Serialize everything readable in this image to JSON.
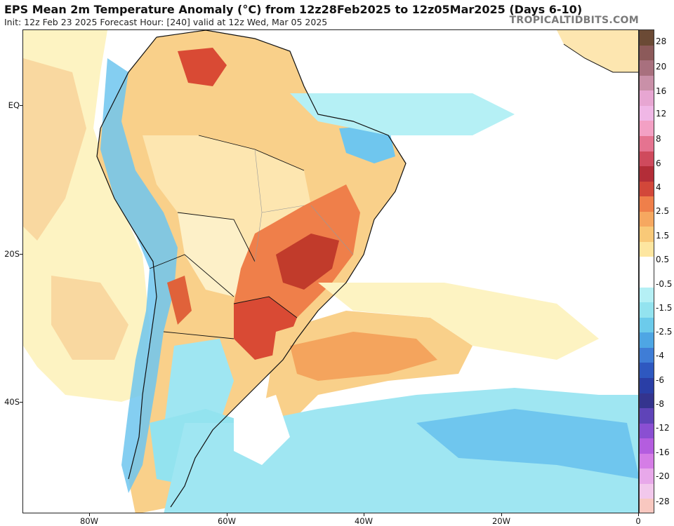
{
  "header": {
    "title": "EPS Mean 2m Temperature Anomaly (°C) from 12z28Feb2025 to 12z05Mar2025 (Days 6-10)",
    "subtitle": "Init: 12z Feb 23 2025   Forecast Hour: [240]   valid at 12z Wed, Mar 05 2025",
    "brand": "TROPICALTIDBITS.COM"
  },
  "map": {
    "lat_labels": [
      "EQ",
      "20S",
      "40S"
    ],
    "lon_labels": [
      "80W",
      "60W",
      "40W",
      "20W",
      "0"
    ],
    "colors": {
      "ocean": "#ffffff",
      "warm_light": "#fdf3c2",
      "warm": "#f9d08a",
      "warm_mid": "#f4a45d",
      "hot": "#e0623a",
      "hotter": "#c13b2b",
      "cool": "#9fe6f2",
      "cool_mid": "#6fc6ee",
      "cold": "#4a86d9",
      "border": "#111111"
    }
  },
  "colorbar": {
    "labels": [
      "28",
      "20",
      "16",
      "12",
      "8",
      "6",
      "4",
      "2.5",
      "1.5",
      "0.5",
      "-0.5",
      "-1.5",
      "-2.5",
      "-4",
      "-6",
      "-8",
      "-12",
      "-16",
      "-20",
      "-28"
    ],
    "colors": [
      "#6b4a35",
      "#8c5a5a",
      "#a8707e",
      "#c990a8",
      "#e7a6d2",
      "#f0b7e6",
      "#f3a0c4",
      "#e57390",
      "#cf4a5d",
      "#b32d38",
      "#d2473a",
      "#ef7f4a",
      "#f6a860",
      "#f9c978",
      "#fde6a0",
      "#ffffff",
      "#ffffff",
      "#b5f0f5",
      "#93e3ef",
      "#6ccbeb",
      "#4ea6e4",
      "#3f7dd6",
      "#2e58c0",
      "#2a3ea6",
      "#34348e",
      "#5f44b8",
      "#8a4fd2",
      "#b45ddf",
      "#d57de6",
      "#e8a8ea",
      "#f2c8ec",
      "#f9c8c0"
    ]
  }
}
